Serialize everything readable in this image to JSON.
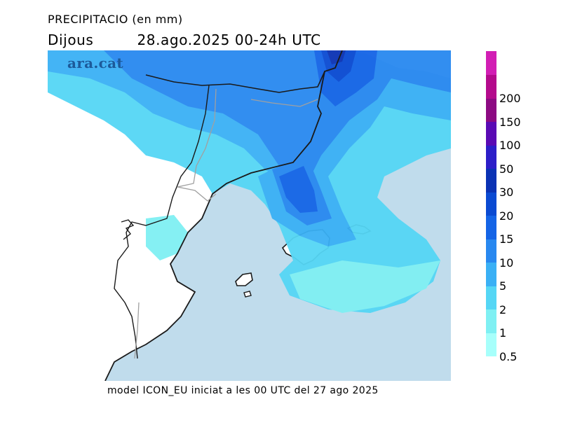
{
  "header": {
    "title": "PRECIPITACIO (en mm)",
    "day": "Dijous",
    "period": "28.ago.2025 00-24h UTC"
  },
  "brand": {
    "logo_text": "ara.cat"
  },
  "footer": {
    "caption": "model ICON_EU iniciat a les 00 UTC del 27 ago 2025"
  },
  "legend": {
    "items": [
      {
        "label": "0.5",
        "color": "#a7fffb"
      },
      {
        "label": "1",
        "color": "#7ff0f3"
      },
      {
        "label": "2",
        "color": "#55d6f5"
      },
      {
        "label": "5",
        "color": "#3ab0f5"
      },
      {
        "label": "10",
        "color": "#2888f0"
      },
      {
        "label": "15",
        "color": "#1464e6"
      },
      {
        "label": "20",
        "color": "#0a4ad2"
      },
      {
        "label": "30",
        "color": "#0a32b4"
      },
      {
        "label": "50",
        "color": "#2c1ec8"
      },
      {
        "label": "100",
        "color": "#5a0ab4"
      },
      {
        "label": "150",
        "color": "#8c0a82"
      },
      {
        "label": "200",
        "color": "#b40a8c"
      },
      {
        "label": "",
        "color": "#d21eb4"
      }
    ]
  },
  "map_colors": {
    "sea": "#c0dcec",
    "land": "#ffffff",
    "coast": "#1a1a1a",
    "province_border": "#a0a0a0"
  }
}
